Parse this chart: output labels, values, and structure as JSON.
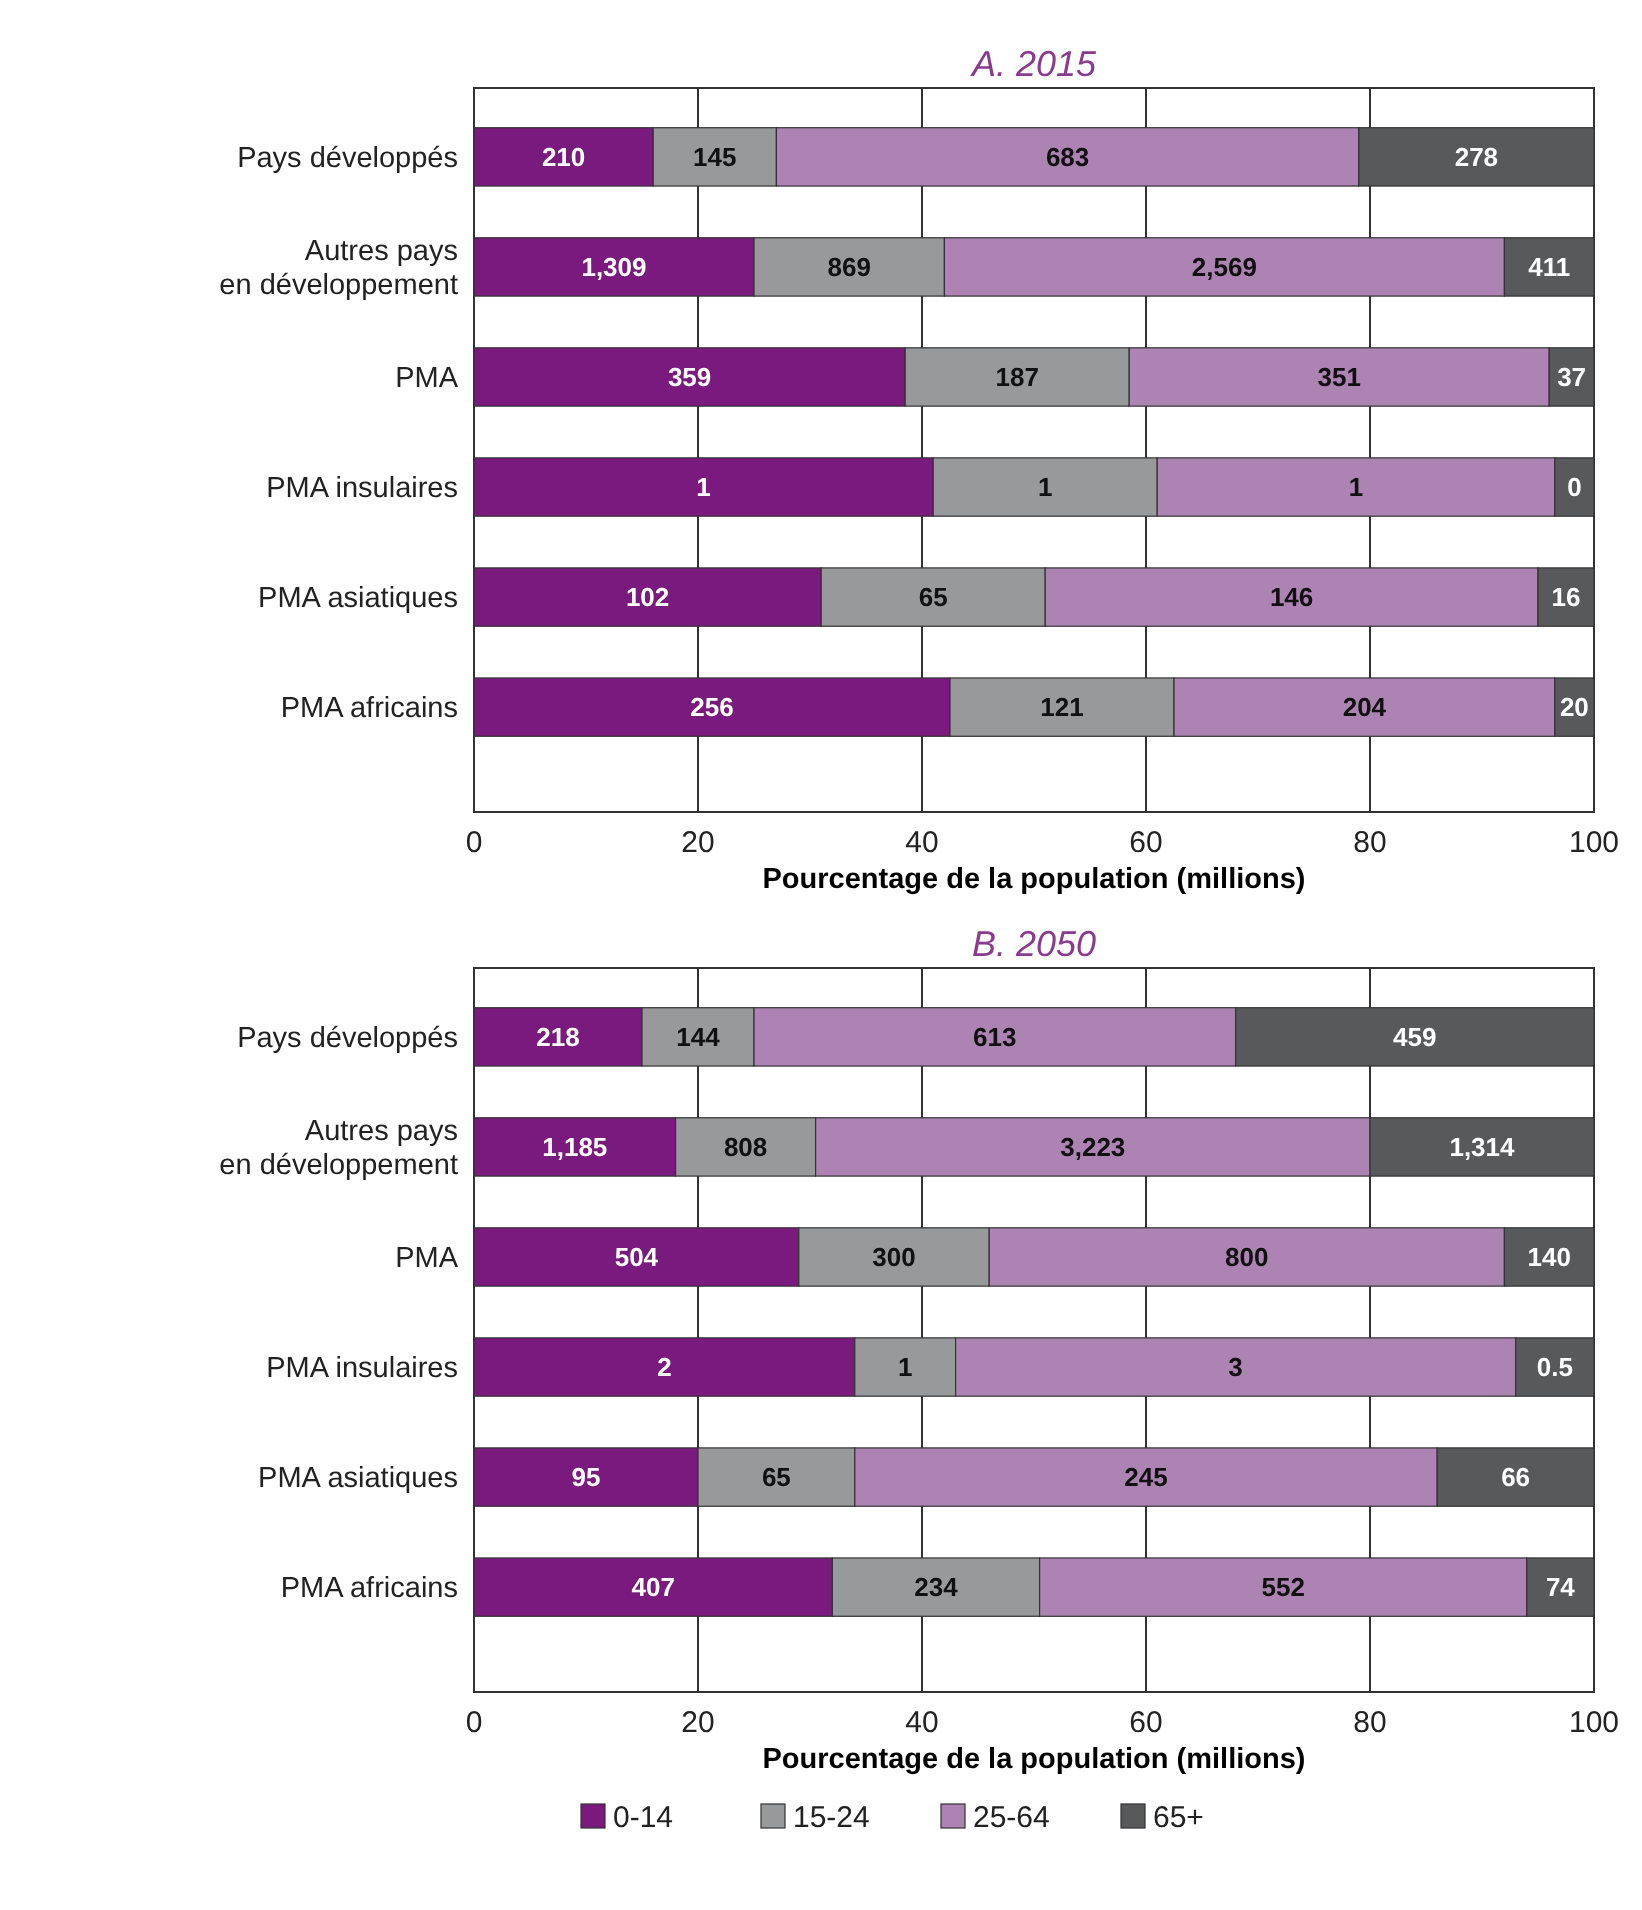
{
  "chart_data": [
    {
      "type": "bar",
      "orientation": "horizontal",
      "stacked": true,
      "title": "A. 2015",
      "xlabel": "Pourcentage de la population (millions)",
      "categories": [
        "Pays développés",
        "Autres pays\nen développement",
        "PMA",
        "PMA insulaires",
        "PMA asiatiques",
        "PMA africains"
      ],
      "xlim": [
        0,
        100
      ],
      "xticks": [
        0,
        20,
        40,
        60,
        80,
        100
      ],
      "grid": "x",
      "legend": false,
      "series": [
        {
          "color": "#7b1a7e",
          "values": [
            16,
            25,
            38.5,
            41,
            31,
            42.5
          ]
        },
        {
          "color": "#98999b",
          "values": [
            11,
            17,
            20,
            20,
            20,
            20
          ]
        },
        {
          "color": "#ad83b3",
          "values": [
            52,
            50,
            37.5,
            35.5,
            44,
            34
          ]
        },
        {
          "color": "#58595b",
          "values": [
            21,
            8,
            4,
            3.5,
            5,
            3.5
          ]
        }
      ],
      "annotations": [
        "210",
        "145",
        "683",
        "278",
        "1,309",
        "869",
        "2,569",
        "411",
        "359",
        "187",
        "351",
        "37",
        "1",
        "1",
        "1",
        "0",
        "102",
        "65",
        "146",
        "16",
        "256",
        "121",
        "204",
        "20"
      ]
    },
    {
      "type": "bar",
      "orientation": "horizontal",
      "stacked": true,
      "title": "B. 2050",
      "xlabel": "Pourcentage de la population (millions)",
      "categories": [
        "Pays développés",
        "Autres pays\nen développement",
        "PMA",
        "PMA insulaires",
        "PMA asiatiques",
        "PMA africains"
      ],
      "xlim": [
        0,
        100
      ],
      "xticks": [
        0,
        20,
        40,
        60,
        80,
        100
      ],
      "grid": "x",
      "legend": "bottom",
      "series": [
        {
          "name": "0-14",
          "color": "#7b1a7e",
          "values": [
            15,
            18,
            29,
            34,
            20,
            32
          ]
        },
        {
          "name": "15-24",
          "color": "#98999b",
          "values": [
            10,
            12.5,
            17,
            9,
            14,
            18.5
          ]
        },
        {
          "name": "25-64",
          "color": "#ad83b3",
          "values": [
            43,
            49.5,
            46,
            50,
            52,
            43.5
          ]
        },
        {
          "name": "65+",
          "color": "#58595b",
          "values": [
            32,
            20,
            8,
            7,
            14,
            6
          ]
        }
      ],
      "annotations": [
        "218",
        "144",
        "613",
        "459",
        "1,185",
        "808",
        "3,223",
        "1,314",
        "504",
        "300",
        "800",
        "140",
        "2",
        "1",
        "3",
        "0.5",
        "95",
        "65",
        "245",
        "66",
        "407",
        "234",
        "552",
        "74"
      ]
    }
  ]
}
